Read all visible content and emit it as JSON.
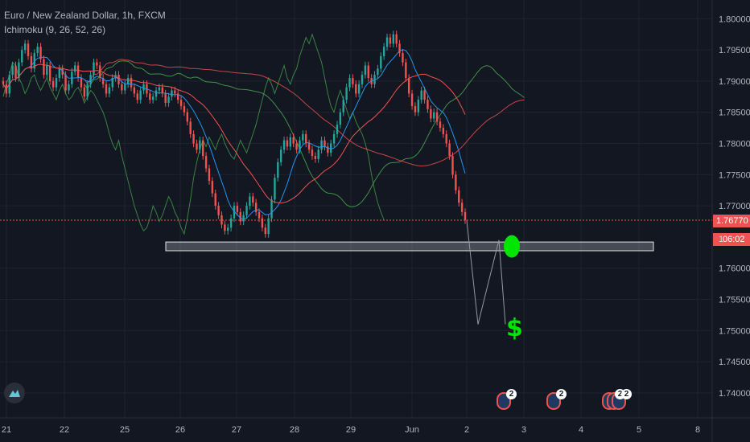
{
  "legend": {
    "title": "Euro / New Zealand Dollar, 1h, FXCM",
    "indicator": "Ichimoku (9, 26, 52, 26)"
  },
  "price_scale": {
    "last_price": "1.76770",
    "countdown": "06:02",
    "partial_label": "1",
    "last_price_color": "#ef5350"
  },
  "annotations": {
    "dollar_sign": "$",
    "avatar_badges": [
      "2",
      "2",
      "2",
      "2"
    ]
  },
  "colors": {
    "background": "#131722",
    "up": "#26a69a",
    "down": "#ef5350",
    "grid": "#1f2330",
    "conversion": "#2196f3",
    "base": "#ef5350",
    "lagging": "#4caf50",
    "span_a": "#4caf50",
    "span_b": "#ef5350",
    "zone": "#d1d4dc",
    "target": "#00e600"
  },
  "chart_data": {
    "type": "candlestick",
    "symbol": "Euro / New Zealand Dollar",
    "interval": "1h",
    "source": "FXCM",
    "x_tick_labels": [
      "21",
      "22",
      "25",
      "26",
      "27",
      "28",
      "29",
      "Jun",
      "2",
      "3",
      "4",
      "5",
      "8"
    ],
    "y_tick_labels": [
      "1.80000",
      "1.79500",
      "1.79000",
      "1.78500",
      "1.78000",
      "1.77500",
      "1.77000",
      "1.76000",
      "1.75500",
      "1.75000",
      "1.74500",
      "1.74000"
    ],
    "ylim": [
      1.736,
      1.803
    ],
    "last_price": 1.7677,
    "support_zone": {
      "low": 1.7628,
      "high": 1.7642
    },
    "target_price": 1.7635,
    "projection_path": [
      1.7677,
      1.751,
      1.7645,
      1.751
    ],
    "close_series": [
      1.7895,
      1.788,
      1.791,
      1.7925,
      1.7905,
      1.793,
      1.795,
      1.796,
      1.794,
      1.792,
      1.7945,
      1.7955,
      1.7935,
      1.791,
      1.7925,
      1.79,
      1.789,
      1.7905,
      1.792,
      1.791,
      1.7885,
      1.7895,
      1.7915,
      1.7925,
      1.7905,
      1.789,
      1.7875,
      1.7895,
      1.791,
      1.793,
      1.7925,
      1.7905,
      1.7895,
      1.788,
      1.789,
      1.7905,
      1.791,
      1.7895,
      1.7885,
      1.7895,
      1.7905,
      1.789,
      1.788,
      1.787,
      1.7885,
      1.7895,
      1.788,
      1.787,
      1.7875,
      1.7885,
      1.789,
      1.788,
      1.7865,
      1.7875,
      1.7885,
      1.788,
      1.787,
      1.786,
      1.785,
      1.7835,
      1.7815,
      1.78,
      1.779,
      1.7805,
      1.778,
      1.776,
      1.774,
      1.772,
      1.77,
      1.7685,
      1.767,
      1.766,
      1.7665,
      1.768,
      1.77,
      1.769,
      1.7675,
      1.7685,
      1.77,
      1.7715,
      1.7705,
      1.769,
      1.768,
      1.7665,
      1.7655,
      1.768,
      1.771,
      1.7745,
      1.777,
      1.779,
      1.7805,
      1.7795,
      1.781,
      1.78,
      1.779,
      1.7805,
      1.7815,
      1.78,
      1.779,
      1.778,
      1.7775,
      1.779,
      1.7805,
      1.7795,
      1.7785,
      1.78,
      1.7815,
      1.783,
      1.785,
      1.787,
      1.789,
      1.7905,
      1.7895,
      1.788,
      1.7895,
      1.791,
      1.7925,
      1.7905,
      1.7895,
      1.791,
      1.792,
      1.794,
      1.7955,
      1.797,
      1.796,
      1.7975,
      1.796,
      1.7945,
      1.793,
      1.7905,
      1.788,
      1.786,
      1.785,
      1.787,
      1.7885,
      1.787,
      1.7855,
      1.784,
      1.785,
      1.7835,
      1.7825,
      1.7815,
      1.78,
      1.778,
      1.775,
      1.7725,
      1.7705,
      1.769,
      1.7677
    ],
    "cloud_end_span_a": 1.786,
    "cloud_end_span_b": 1.788
  }
}
